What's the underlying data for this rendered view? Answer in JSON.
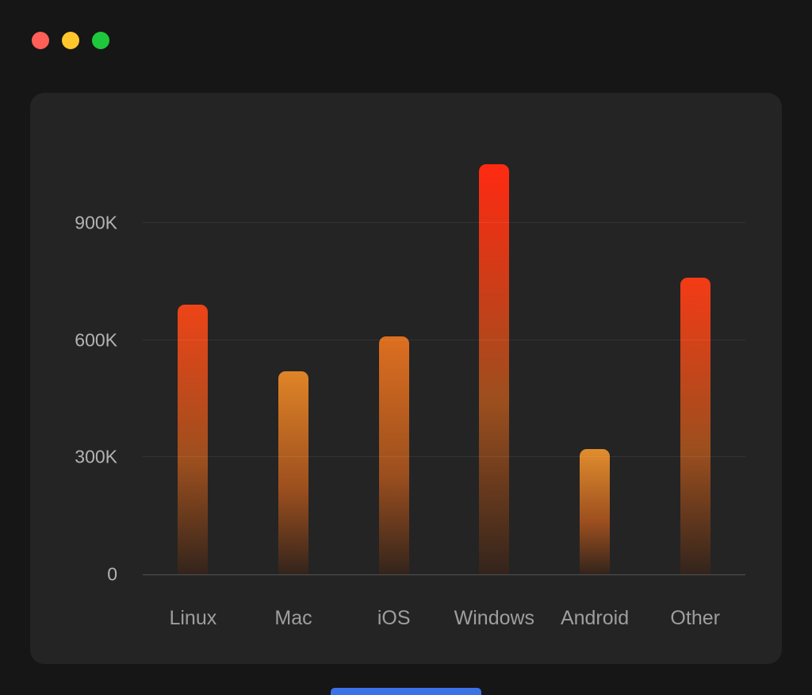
{
  "window": {
    "controls": [
      {
        "name": "close",
        "color": "#ff5f57"
      },
      {
        "name": "minimize",
        "color": "#ffc72c"
      },
      {
        "name": "zoom",
        "color": "#1ec83c"
      }
    ],
    "accent_bar_color": "#3b72e8"
  },
  "theme": {
    "outer_bg": "#161616",
    "panel_bg": "#242424",
    "grid_color": "rgba(255,255,255,0.07)",
    "axis_color": "rgba(255,255,255,0.22)",
    "y_label_color": "#b3b3b3",
    "x_label_color": "#9e9e9e"
  },
  "chart_data": {
    "type": "bar",
    "title": "",
    "categories": [
      "Linux",
      "Mac",
      "iOS",
      "Windows",
      "Android",
      "Other"
    ],
    "values": [
      690,
      520,
      610,
      1050,
      320,
      760
    ],
    "value_unit": "K",
    "xlabel": "",
    "ylabel": "",
    "ylim": [
      0,
      1100
    ],
    "grid": true,
    "legend": false,
    "y_ticks": [
      {
        "label": "900K",
        "value": 900
      },
      {
        "label": "600K",
        "value": 600
      },
      {
        "label": "300K",
        "value": 300
      },
      {
        "label": "0",
        "value": 0
      }
    ],
    "bar_top_colors": [
      "#ee4418",
      "#e08427",
      "#dd6f20",
      "#ff2a12",
      "#e18d2e",
      "#f43b16"
    ],
    "bar_mid_color": "#9c4f1e",
    "bar_bottom_color": "#33241c"
  }
}
